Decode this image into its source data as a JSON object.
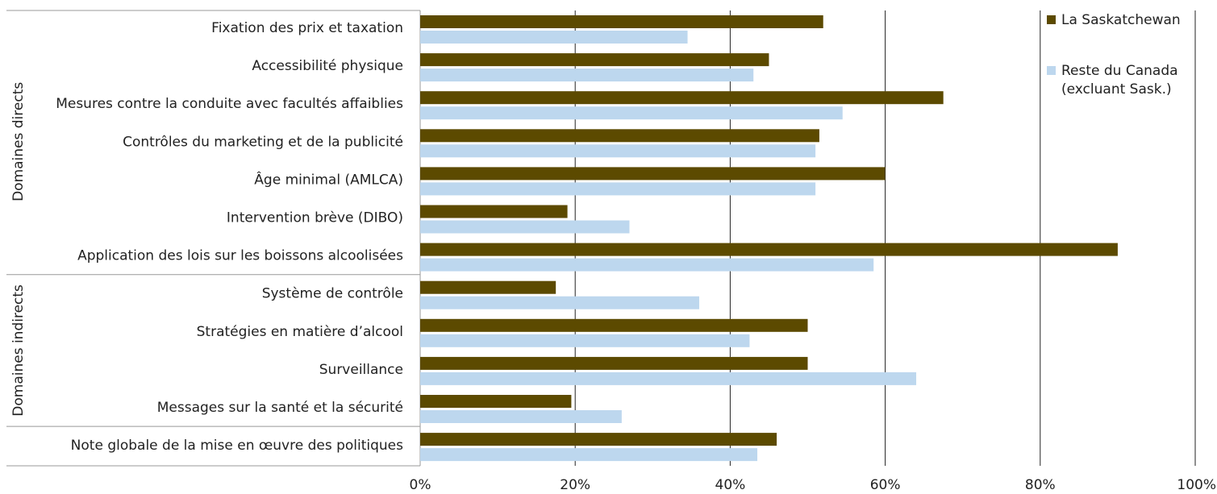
{
  "chart_data": {
    "type": "bar",
    "orientation": "horizontal",
    "xlim": [
      0,
      100
    ],
    "x_ticks": [
      0,
      20,
      40,
      60,
      80,
      100
    ],
    "x_tick_labels": [
      "0%",
      "20%",
      "40%",
      "60%",
      "80%",
      "100%"
    ],
    "grid": "vertical",
    "categories": [
      "Fixation des prix et taxation",
      "Accessibilité physique",
      "Mesures contre la conduite avec facultés affaiblies",
      "Contrôles du marketing et de la publicité",
      "Âge minimal (AMLCA)",
      "Intervention brève (DIBO)",
      "Application des lois sur les boissons alcoolisées",
      "Système de contrôle",
      "Stratégies en matière d’alcool",
      "Surveillance",
      "Messages sur la santé et la sécurité",
      "Note globale de la mise en œuvre des politiques"
    ],
    "groups": [
      {
        "label": "Domaines directs",
        "start": 0,
        "end": 6
      },
      {
        "label": "Domaines indirects",
        "start": 7,
        "end": 10
      },
      {
        "label": "",
        "start": 11,
        "end": 11
      }
    ],
    "series": [
      {
        "name": "La Saskatchewan",
        "color": "#5c4a00",
        "values": [
          52,
          45,
          67.5,
          51.5,
          60,
          19,
          90,
          17.5,
          50,
          50,
          19.5,
          46
        ]
      },
      {
        "name": "Reste du Canada (excluant Sask.)",
        "legend_lines": [
          "Reste du Canada",
          "(excluant Sask.)"
        ],
        "color": "#bdd7ee",
        "values": [
          34.5,
          43,
          54.5,
          51,
          51,
          27,
          58.5,
          36,
          42.5,
          64,
          26,
          43.5
        ]
      }
    ],
    "legend_position": "right"
  }
}
